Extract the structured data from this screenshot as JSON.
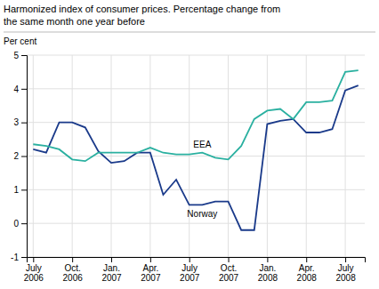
{
  "chart_data": {
    "type": "line",
    "title": "Harmonized index of consumer prices. Percentage change from",
    "subtitle": "the same month one year before",
    "y_label": "Per cent",
    "categories": [
      "July\n2006",
      null,
      null,
      "Oct.\n2006",
      null,
      null,
      "Jan.\n2007",
      null,
      null,
      "Apr.\n2007",
      null,
      null,
      "July\n2007",
      null,
      null,
      "Oct.\n2007",
      null,
      null,
      "Jan.\n2008",
      null,
      null,
      "Apr.\n2008",
      null,
      null,
      "July\n2008",
      null
    ],
    "series": [
      {
        "name": "Norway",
        "color": "#1a3a8a",
        "values": [
          2.2,
          2.1,
          3.0,
          3.0,
          2.85,
          2.15,
          1.8,
          1.85,
          2.1,
          2.1,
          0.85,
          1.3,
          0.55,
          0.55,
          0.65,
          0.65,
          -0.2,
          -0.2,
          2.95,
          3.05,
          3.1,
          2.7,
          2.7,
          2.8,
          3.95,
          4.1
        ]
      },
      {
        "name": "EEA",
        "color": "#2ab0a0",
        "values": [
          2.35,
          2.3,
          2.2,
          1.9,
          1.85,
          2.1,
          2.1,
          2.1,
          2.1,
          2.25,
          2.1,
          2.05,
          2.05,
          2.1,
          1.95,
          1.9,
          2.3,
          3.1,
          3.35,
          3.4,
          3.1,
          3.6,
          3.6,
          3.65,
          4.5,
          4.55
        ]
      }
    ],
    "ylim": [
      -1,
      5
    ],
    "yticks": [
      -1,
      0,
      1,
      2,
      3,
      4,
      5
    ],
    "grid": true
  }
}
